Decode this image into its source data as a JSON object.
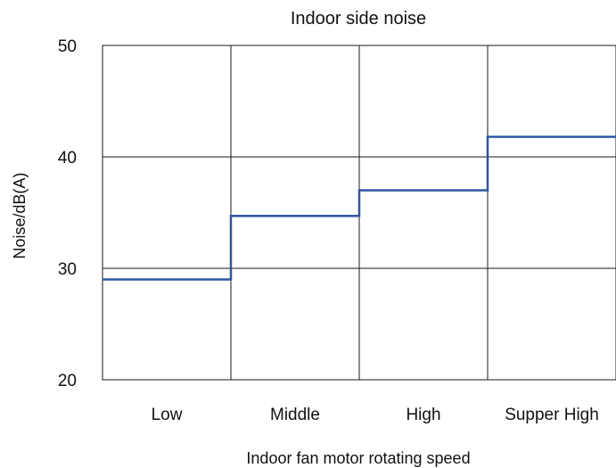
{
  "chart_data": {
    "type": "line",
    "step": true,
    "title": "Indoor side noise",
    "xlabel": "Indoor fan motor rotating speed",
    "ylabel": "Noise/dB(A)",
    "categories": [
      "Low",
      "Middle",
      "High",
      "Supper High"
    ],
    "ylim": [
      20,
      50
    ],
    "yticks": [
      "20",
      "30",
      "40",
      "50"
    ],
    "ytick_values": [
      20,
      30,
      40,
      50
    ],
    "grid": true,
    "series": [
      {
        "values": [
          29.0,
          34.7,
          37.0,
          41.8
        ],
        "color": "#2f56a3"
      }
    ]
  }
}
